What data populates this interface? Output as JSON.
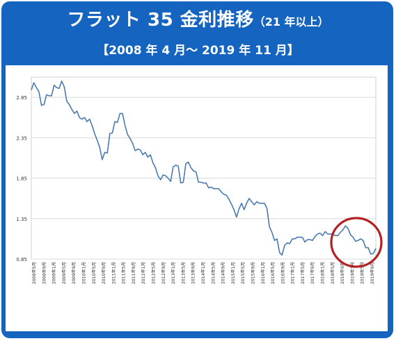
{
  "header": {
    "title": "フラット 35 金利推移",
    "subtitle": "（21 年以上）",
    "period": "【2008 年 4 月～ 2019 年 11 月】"
  },
  "colors": {
    "frame": "#1565c0",
    "line": "#4a7ab0",
    "highlight_circle": "#b22222",
    "grid": "#d9d9d9"
  },
  "chart_data": {
    "type": "line",
    "title": "",
    "xlabel": "",
    "ylabel": "",
    "ylim": [
      0.85,
      3.1
    ],
    "yticks": [
      0.85,
      1.35,
      1.85,
      2.35,
      2.85
    ],
    "ytick_labels": [
      "0.85",
      "1.35",
      "1.85",
      "2.35",
      "2.85"
    ],
    "grid": "horizontal",
    "x_tick_labels": [
      "2008年5月",
      "2008年9月",
      "2009年1月",
      "2009年5月",
      "2009年9月",
      "2010年1月",
      "2010年5月",
      "2010年9月",
      "2011年1月",
      "2011年5月",
      "2011年9月",
      "2012年1月",
      "2012年5月",
      "2012年9月",
      "2013年1月",
      "2013年5月",
      "2013年9月",
      "2014年1月",
      "2014年5月",
      "2014年9月",
      "2015年1月",
      "2015年5月",
      "2015年9月",
      "2016年1月",
      "2016年5月",
      "2016年9月",
      "2017年1月",
      "2017年5月",
      "2017年9月",
      "2018年1月",
      "2018年5月",
      "2018年9月",
      "2019年1月",
      "2019年5月",
      "2019年9月"
    ],
    "series": [
      {
        "values": [
          2.94,
          3.03,
          2.97,
          2.92,
          2.75,
          2.76,
          2.88,
          2.87,
          2.87,
          3.0,
          2.97,
          2.96,
          3.05,
          2.98,
          2.8,
          2.76,
          2.7,
          2.65,
          2.68,
          2.6,
          2.58,
          2.6,
          2.55,
          2.58,
          2.5,
          2.4,
          2.32,
          2.23,
          2.08,
          2.17,
          2.16,
          2.4,
          2.41,
          2.55,
          2.54,
          2.65,
          2.65,
          2.5,
          2.39,
          2.34,
          2.28,
          2.19,
          2.21,
          2.2,
          2.14,
          2.17,
          2.11,
          2.14,
          2.04,
          1.98,
          1.88,
          1.83,
          1.89,
          1.88,
          1.85,
          1.81,
          1.99,
          2.01,
          2.0,
          1.79,
          1.8,
          2.03,
          2.05,
          1.98,
          1.94,
          1.93,
          1.8,
          1.8,
          1.79,
          1.79,
          1.73,
          1.74,
          1.72,
          1.72,
          1.72,
          1.68,
          1.65,
          1.64,
          1.59,
          1.53,
          1.46,
          1.37,
          1.47,
          1.54,
          1.46,
          1.54,
          1.6,
          1.56,
          1.52,
          1.56,
          1.54,
          1.54,
          1.54,
          1.48,
          1.25,
          1.18,
          1.08,
          1.1,
          0.93,
          0.9,
          1.02,
          1.05,
          1.04,
          1.1,
          1.1,
          1.12,
          1.12,
          1.12,
          1.06,
          1.09,
          1.09,
          1.08,
          1.13,
          1.16,
          1.17,
          1.14,
          1.19,
          1.16,
          1.16,
          1.16,
          1.14,
          1.14,
          1.18,
          1.21,
          1.26,
          1.23,
          1.15,
          1.12,
          1.07,
          1.08,
          1.1,
          1.08,
          0.99,
          0.99,
          0.91,
          0.92,
          0.98
        ]
      }
    ],
    "annotations": [
      {
        "type": "circle",
        "around": "2018年9月 – 2019年11月",
        "color": "#b22222"
      }
    ]
  }
}
